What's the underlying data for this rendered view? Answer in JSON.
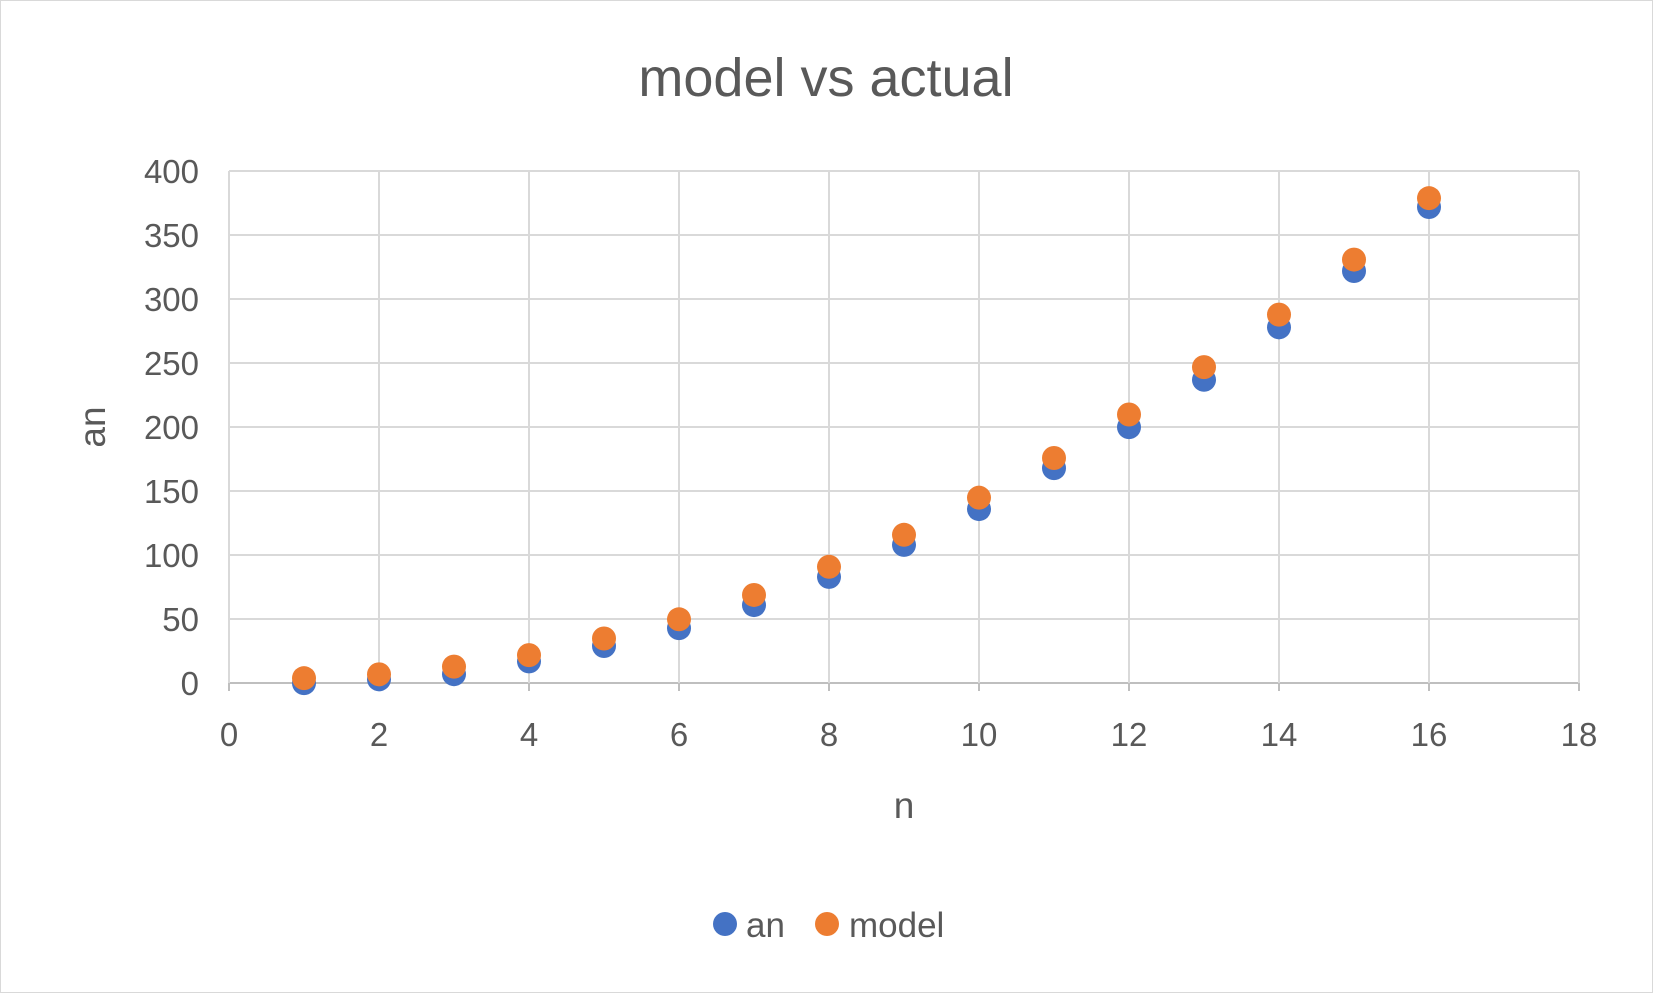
{
  "chart_data": {
    "type": "scatter",
    "title": "model vs actual",
    "xlabel": "n",
    "ylabel": "an",
    "xlim": [
      0,
      18
    ],
    "ylim": [
      0,
      400
    ],
    "x_ticks": [
      0,
      2,
      4,
      6,
      8,
      10,
      12,
      14,
      16,
      18
    ],
    "y_ticks": [
      0,
      50,
      100,
      150,
      200,
      250,
      300,
      350,
      400
    ],
    "grid": true,
    "legend_position": "bottom",
    "series": [
      {
        "name": "an",
        "color": "#4472C4",
        "x": [
          1,
          2,
          3,
          4,
          5,
          6,
          7,
          8,
          9,
          10,
          11,
          12,
          13,
          14,
          15,
          16
        ],
        "y": [
          3,
          6,
          10,
          20,
          32,
          46,
          64,
          86,
          111,
          139,
          171,
          203,
          240,
          281,
          325,
          375
        ]
      },
      {
        "name": "model",
        "color": "#ED7D31",
        "x": [
          1,
          2,
          3,
          4,
          5,
          6,
          7,
          8,
          9,
          10,
          11,
          12,
          13,
          14,
          15,
          16
        ],
        "y": [
          3,
          6,
          12,
          21,
          34,
          49,
          68,
          90,
          115,
          144,
          175,
          209,
          246,
          287,
          330,
          378
        ]
      }
    ]
  }
}
